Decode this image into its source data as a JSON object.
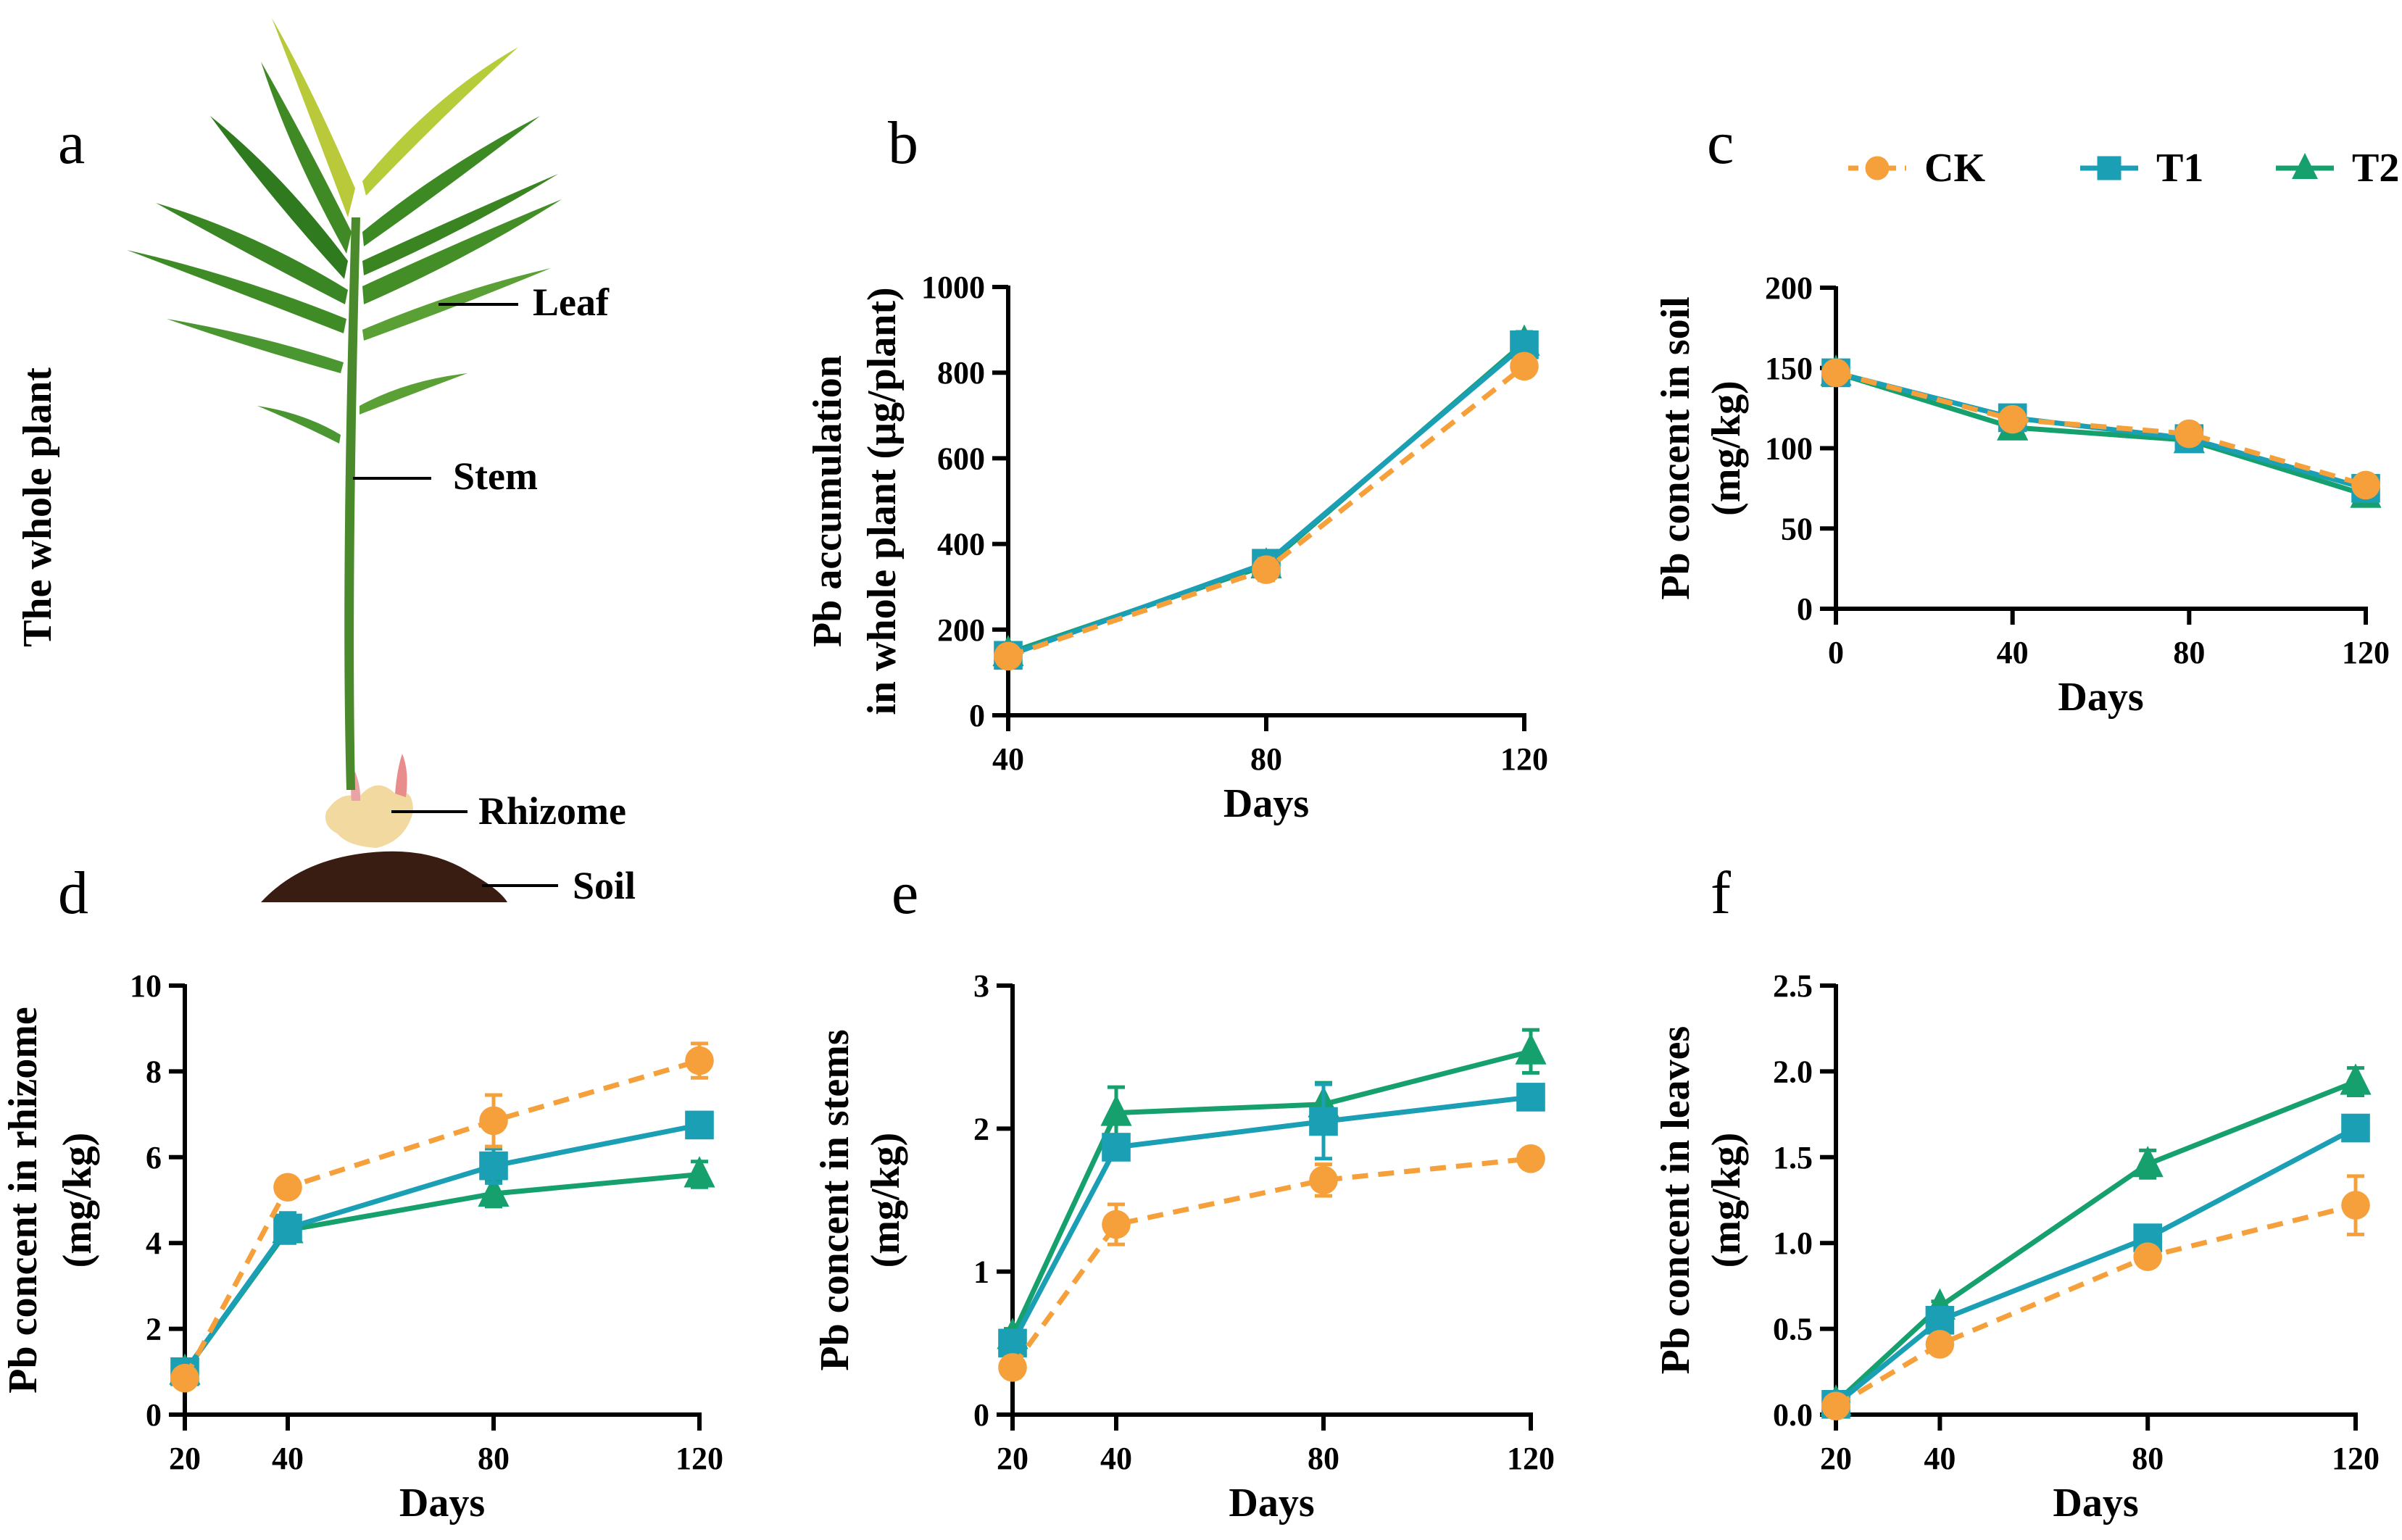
{
  "figure": {
    "panel_a": {
      "letter": "a",
      "side_title": "The whole plant",
      "labels": {
        "leaf": "Leaf",
        "stem": "Stem",
        "rhizome": "Rhizome",
        "soil": "Soil"
      },
      "image_description": "ginger plant with leaves, stem, rhizome and soil"
    },
    "legend": {
      "position": "top-right",
      "entries": [
        {
          "name": "CK",
          "color": "#F5A03A",
          "marker": "circle",
          "line": "dashed"
        },
        {
          "name": "T1",
          "color": "#1A9FB5",
          "marker": "square",
          "line": "solid"
        },
        {
          "name": "T2",
          "color": "#16A06E",
          "marker": "triangle",
          "line": "solid"
        }
      ]
    }
  },
  "chart_data": [
    {
      "panel": "b",
      "type": "line",
      "title": "",
      "xlabel": "Days",
      "ylabel": [
        "Pb accumulation",
        "in whole plant (μg/plant)"
      ],
      "x": [
        40,
        80,
        120
      ],
      "xticks": [
        "40",
        "80",
        "120"
      ],
      "xlim": [
        40,
        120
      ],
      "ylim": [
        0,
        1000
      ],
      "yticks": [
        "0",
        "200",
        "400",
        "600",
        "800",
        "1000"
      ],
      "grid": false,
      "series": [
        {
          "name": "CK",
          "values": [
            138,
            340,
            815
          ],
          "errors": [
            8,
            25,
            15
          ]
        },
        {
          "name": "T1",
          "values": [
            140,
            355,
            865
          ],
          "errors": [
            8,
            25,
            25
          ]
        },
        {
          "name": "T2",
          "values": [
            145,
            350,
            870
          ],
          "errors": [
            8,
            25,
            25
          ]
        }
      ]
    },
    {
      "panel": "c",
      "type": "line",
      "title": "",
      "xlabel": "Days",
      "ylabel": [
        "Pb concent in soil",
        "(mg/kg)"
      ],
      "x": [
        0,
        40,
        80,
        120
      ],
      "xticks": [
        "0",
        "40",
        "80",
        "120"
      ],
      "xlim": [
        0,
        120
      ],
      "ylim": [
        0,
        200
      ],
      "yticks": [
        "0",
        "50",
        "100",
        "150",
        "200"
      ],
      "grid": false,
      "series": [
        {
          "name": "CK",
          "values": [
            147,
            118,
            109,
            77
          ],
          "errors": [
            2,
            4,
            5,
            2
          ]
        },
        {
          "name": "T1",
          "values": [
            147,
            119,
            106,
            75
          ],
          "errors": [
            2,
            6,
            6,
            2
          ]
        },
        {
          "name": "T2",
          "values": [
            147,
            113,
            105,
            71
          ],
          "errors": [
            2,
            3,
            3,
            2
          ]
        }
      ]
    },
    {
      "panel": "d",
      "type": "line",
      "title": "",
      "xlabel": "Days",
      "ylabel": [
        "Pb concent in rhizome",
        "(mg/kg)"
      ],
      "x": [
        20,
        40,
        80,
        120
      ],
      "xticks": [
        "20",
        "40",
        "80",
        "120"
      ],
      "xlim": [
        20,
        120
      ],
      "ylim": [
        0,
        10
      ],
      "yticks": [
        "0",
        "2",
        "4",
        "6",
        "8",
        "10"
      ],
      "grid": false,
      "series": [
        {
          "name": "CK",
          "values": [
            0.85,
            5.3,
            6.85,
            8.25
          ],
          "errors": [
            0.1,
            0.1,
            0.6,
            0.4
          ]
        },
        {
          "name": "T1",
          "values": [
            1.0,
            4.35,
            5.8,
            6.75
          ],
          "errors": [
            0.1,
            0.35,
            0.4,
            0.1
          ]
        },
        {
          "name": "T2",
          "values": [
            1.0,
            4.3,
            5.15,
            5.6
          ],
          "errors": [
            0.1,
            0.2,
            0.3,
            0.3
          ]
        }
      ]
    },
    {
      "panel": "e",
      "type": "line",
      "title": "",
      "xlabel": "Days",
      "ylabel": [
        "Pb concent in stems",
        "(mg/kg)"
      ],
      "x": [
        20,
        40,
        80,
        120
      ],
      "xticks": [
        "20",
        "40",
        "80",
        "120"
      ],
      "xlim": [
        20,
        120
      ],
      "ylim": [
        0,
        3
      ],
      "yticks": [
        "0",
        "1",
        "2",
        "3"
      ],
      "grid": false,
      "series": [
        {
          "name": "CK",
          "values": [
            0.33,
            1.33,
            1.64,
            1.79
          ],
          "errors": [
            0.07,
            0.14,
            0.11,
            0.07
          ]
        },
        {
          "name": "T1",
          "values": [
            0.5,
            1.87,
            2.05,
            2.22
          ],
          "errors": [
            0.05,
            0.05,
            0.26,
            0.06
          ]
        },
        {
          "name": "T2",
          "values": [
            0.55,
            2.11,
            2.17,
            2.54
          ],
          "errors": [
            0.05,
            0.18,
            0.15,
            0.15
          ]
        }
      ]
    },
    {
      "panel": "f",
      "type": "line",
      "title": "",
      "xlabel": "Days",
      "ylabel": [
        "Pb concent in leaves",
        "(mg/kg)"
      ],
      "x": [
        20,
        40,
        80,
        120
      ],
      "xticks": [
        "20",
        "40",
        "80",
        "120"
      ],
      "xlim": [
        20,
        120
      ],
      "ylim": [
        0,
        2.5
      ],
      "yticks": [
        "0.0",
        "0.5",
        "1.0",
        "1.5",
        "2.0",
        "2.5"
      ],
      "grid": false,
      "series": [
        {
          "name": "CK",
          "values": [
            0.05,
            0.41,
            0.92,
            1.22
          ],
          "errors": [
            0.02,
            0.02,
            0.04,
            0.17
          ]
        },
        {
          "name": "T1",
          "values": [
            0.06,
            0.55,
            1.03,
            1.67
          ],
          "errors": [
            0.02,
            0.05,
            0.03,
            0.06
          ]
        },
        {
          "name": "T2",
          "values": [
            0.07,
            0.63,
            1.46,
            1.94
          ],
          "errors": [
            0.02,
            0.03,
            0.08,
            0.08
          ]
        }
      ]
    }
  ]
}
